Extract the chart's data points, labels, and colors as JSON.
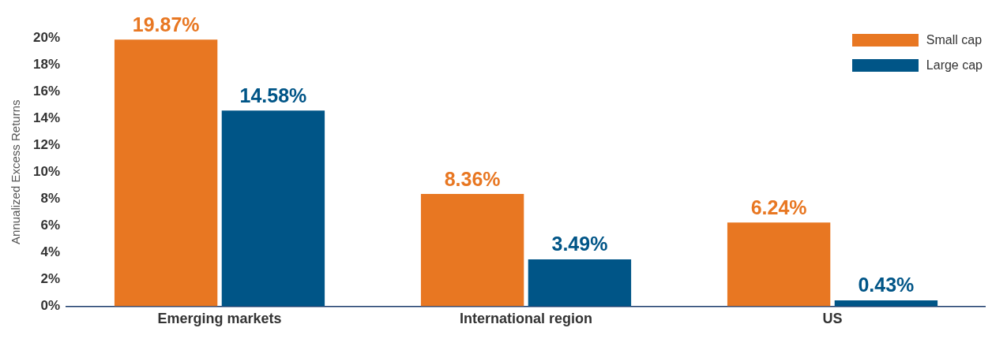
{
  "chart_data": {
    "type": "bar",
    "ylabel": "Annualized Excess Returns",
    "categories": [
      "Emerging markets",
      "International region",
      "US"
    ],
    "series": [
      {
        "name": "Small cap",
        "color": "#e87722",
        "values": [
          19.87,
          8.36,
          6.24
        ],
        "value_labels": [
          "19.87%",
          "8.36%",
          "6.24%"
        ]
      },
      {
        "name": "Large cap",
        "color": "#005587",
        "values": [
          14.58,
          3.49,
          0.43
        ],
        "value_labels": [
          "14.58%",
          "3.49%",
          "0.43%"
        ]
      }
    ],
    "ylim": [
      0,
      20
    ],
    "yticks": [
      {
        "value": 0,
        "label": "0%"
      },
      {
        "value": 2,
        "label": "2%"
      },
      {
        "value": 4,
        "label": "4%"
      },
      {
        "value": 6,
        "label": "6%"
      },
      {
        "value": 8,
        "label": "8%"
      },
      {
        "value": 10,
        "label": "10%"
      },
      {
        "value": 12,
        "label": "12%"
      },
      {
        "value": 14,
        "label": "14%"
      },
      {
        "value": 16,
        "label": "16%"
      },
      {
        "value": 18,
        "label": "18%"
      },
      {
        "value": 20,
        "label": "20%"
      }
    ],
    "grid": false,
    "legend": "top right"
  }
}
